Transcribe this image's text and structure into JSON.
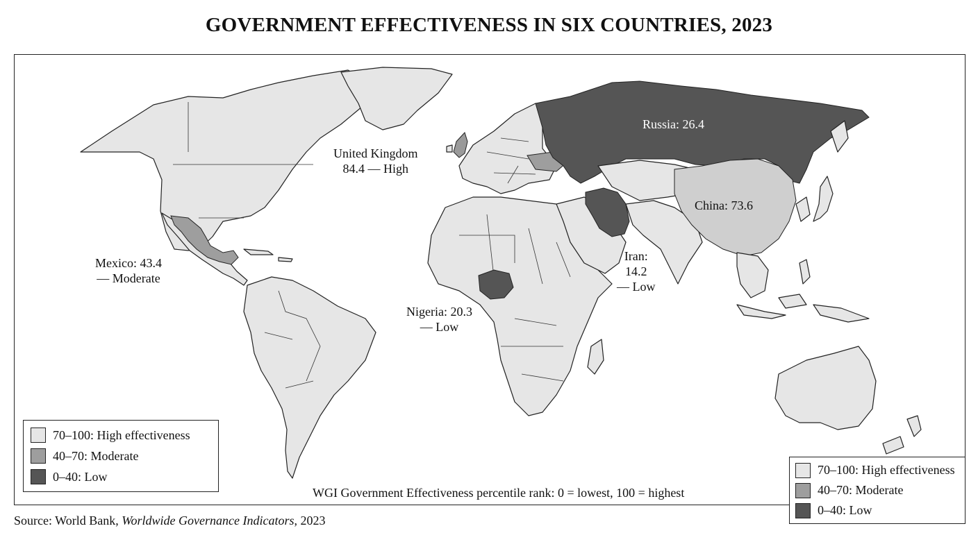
{
  "title": "GOVERNMENT EFFECTIVENESS IN SIX COUNTRIES, 2023",
  "countries": [
    {
      "name": "United Kingdom",
      "value": 84.4,
      "category": "High",
      "label_line1": "United Kingdom",
      "label_line2": "84.4 — High"
    },
    {
      "name": "Russia",
      "value": 26.4,
      "label": "Russia: 26.4"
    },
    {
      "name": "China",
      "value": 73.6,
      "label": "China: 73.6"
    },
    {
      "name": "Mexico",
      "value": 43.4,
      "category": "Moderate",
      "label_line1": "Mexico: 43.4",
      "label_line2": "— Moderate"
    },
    {
      "name": "Iran",
      "value": 14.2,
      "category": "Low",
      "label_line1": "Iran:",
      "label_line2": "14.2",
      "label_line3": "— Low"
    },
    {
      "name": "Nigeria",
      "value": 20.3,
      "category": "Low",
      "label_line1": "Nigeria: 20.3",
      "label_line2": "— Low"
    }
  ],
  "legend": {
    "items": [
      {
        "label": "70–100: High effectiveness",
        "color": "#e6e6e6"
      },
      {
        "label": "40–70: Moderate",
        "color": "#9e9e9e"
      },
      {
        "label": "0–40: Low",
        "color": "#555555"
      }
    ]
  },
  "note": "WGI Government Effectiveness percentile rank: 0 = lowest, 100 = highest",
  "source": {
    "prefix": "Source: World Bank, ",
    "publication": "Worldwide Governance Indicators",
    "suffix": ", 2023"
  }
}
